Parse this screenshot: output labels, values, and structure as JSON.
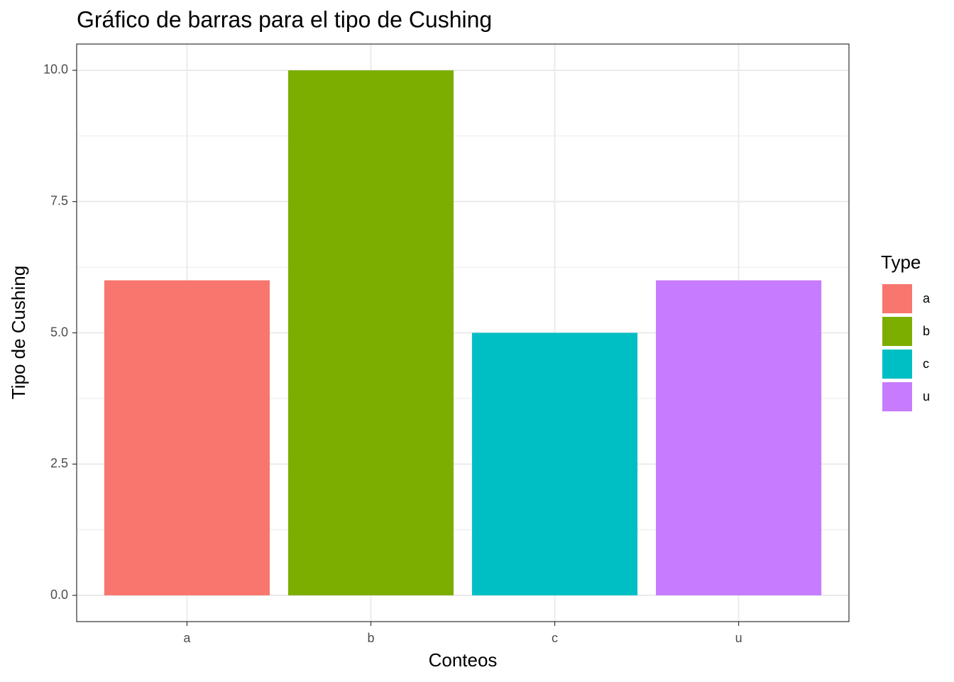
{
  "chart_data": {
    "type": "bar",
    "title": "Gráfico de barras para el tipo de Cushing",
    "x_label": "Conteos",
    "y_label": "Tipo de Cushing",
    "categories": [
      "a",
      "b",
      "c",
      "u"
    ],
    "values": [
      6,
      10,
      5,
      6
    ],
    "colors": [
      "#f8766d",
      "#7cae00",
      "#00bfc4",
      "#c77cff"
    ],
    "ylim": [
      -0.5,
      10.5
    ],
    "yticks": [
      {
        "value": 0,
        "label": "0.0"
      },
      2.5,
      {
        "value": 5,
        "label": "5.0"
      },
      7.5,
      {
        "value": 10,
        "label": "10.0"
      }
    ],
    "grid": true,
    "legend_title": "Type",
    "legend_position": "right"
  }
}
